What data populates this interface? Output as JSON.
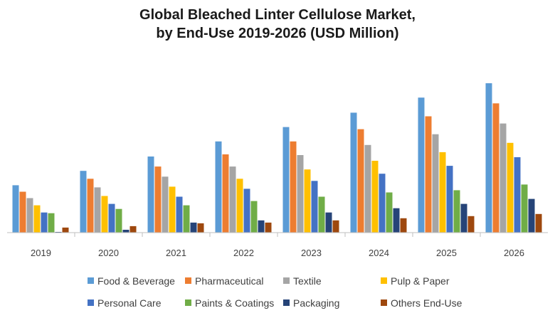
{
  "chart_data": {
    "type": "bar",
    "title": [
      "Global Bleached Linter Cellulose Market,",
      "by End-Use 2019-2026 (USD Million)"
    ],
    "categories": [
      "2019",
      "2020",
      "2021",
      "2022",
      "2023",
      "2024",
      "2025",
      "2026"
    ],
    "ylim": [
      0,
      210
    ],
    "grid": false,
    "legend_position": "bottom",
    "series": [
      {
        "name": "Food & Beverage",
        "color": "#5b9bd5",
        "values": [
          66,
          86,
          106,
          127,
          147,
          167,
          188,
          208
        ]
      },
      {
        "name": "Pharmaceutical",
        "color": "#ed7d31",
        "values": [
          57,
          75,
          92,
          109,
          127,
          144,
          162,
          180
        ]
      },
      {
        "name": "Textile",
        "color": "#a5a5a5",
        "values": [
          48,
          63,
          78,
          92,
          108,
          122,
          137,
          152
        ]
      },
      {
        "name": "Pulp & Paper",
        "color": "#ffc000",
        "values": [
          38,
          51,
          64,
          75,
          88,
          100,
          112,
          125
        ]
      },
      {
        "name": "Personal Care",
        "color": "#4472c4",
        "values": [
          28,
          40,
          50,
          61,
          72,
          82,
          93,
          105
        ]
      },
      {
        "name": "Paints & Coatings",
        "color": "#70ad47",
        "values": [
          27,
          33,
          38,
          44,
          50,
          56,
          59,
          67
        ]
      },
      {
        "name": "Packaging",
        "color": "#264478",
        "values": [
          1,
          4,
          14,
          17,
          28,
          34,
          40,
          47
        ]
      },
      {
        "name": "Others End-Use",
        "color": "#9e480e",
        "values": [
          7,
          9,
          13,
          14,
          17,
          20,
          23,
          26
        ]
      }
    ]
  }
}
